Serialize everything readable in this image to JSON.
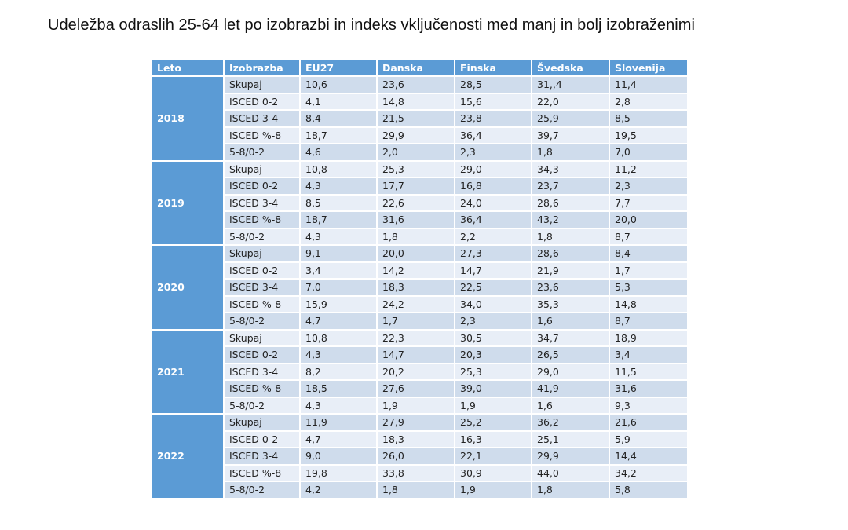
{
  "title": "Udeležba odraslih 25-64 let po izobrazbi in indeks vključenosti med manj in bolj izobraženimi",
  "colors": {
    "header_bg": "#5b9bd5",
    "header_text": "#ffffff",
    "row_dark": "#cfdcec",
    "row_light": "#e8eef7"
  },
  "table": {
    "headers": [
      "Leto",
      "Izobrazba",
      "EU27",
      "Danska",
      "Finska",
      "Švedska",
      "Slovenija"
    ],
    "groups": [
      {
        "year": "2018",
        "rows": [
          [
            "Skupaj",
            "10,6",
            "23,6",
            "28,5",
            "31,,4",
            "11,4"
          ],
          [
            "ISCED 0-2",
            "4,1",
            "14,8",
            "15,6",
            "22,0",
            "2,8"
          ],
          [
            "ISCED 3-4",
            "8,4",
            "21,5",
            "23,8",
            "25,9",
            "8,5"
          ],
          [
            "ISCED %-8",
            "18,7",
            "29,9",
            "36,4",
            "39,7",
            "19,5"
          ],
          [
            "5-8/0-2",
            "4,6",
            "2,0",
            "2,3",
            "1,8",
            "7,0"
          ]
        ]
      },
      {
        "year": "2019",
        "rows": [
          [
            "Skupaj",
            "10,8",
            "25,3",
            "29,0",
            "34,3",
            "11,2"
          ],
          [
            "ISCED 0-2",
            "4,3",
            "17,7",
            "16,8",
            "23,7",
            "2,3"
          ],
          [
            "ISCED 3-4",
            "8,5",
            "22,6",
            "24,0",
            "28,6",
            "7,7"
          ],
          [
            "ISCED %-8",
            "18,7",
            "31,6",
            "36,4",
            "43,2",
            "20,0"
          ],
          [
            "5-8/0-2",
            "4,3",
            "1,8",
            "2,2",
            "1,8",
            "8,7"
          ]
        ]
      },
      {
        "year": "2020",
        "rows": [
          [
            "Skupaj",
            "9,1",
            "20,0",
            "27,3",
            "28,6",
            "8,4"
          ],
          [
            "ISCED 0-2",
            "3,4",
            "14,2",
            "14,7",
            "21,9",
            "1,7"
          ],
          [
            "ISCED 3-4",
            "7,0",
            "18,3",
            "22,5",
            "23,6",
            "5,3"
          ],
          [
            "ISCED %-8",
            "15,9",
            "24,2",
            "34,0",
            "35,3",
            "14,8"
          ],
          [
            "5-8/0-2",
            "4,7",
            "1,7",
            "2,3",
            "1,6",
            "8,7"
          ]
        ]
      },
      {
        "year": "2021",
        "rows": [
          [
            "Skupaj",
            "10,8",
            "22,3",
            "30,5",
            "34,7",
            "18,9"
          ],
          [
            "ISCED 0-2",
            "4,3",
            "14,7",
            "20,3",
            "26,5",
            "3,4"
          ],
          [
            "ISCED 3-4",
            "8,2",
            "20,2",
            "25,3",
            "29,0",
            "11,5"
          ],
          [
            "ISCED %-8",
            "18,5",
            "27,6",
            "39,0",
            "41,9",
            "31,6"
          ],
          [
            "5-8/0-2",
            "4,3",
            "1,9",
            "1,9",
            "1,6",
            "9,3"
          ]
        ]
      },
      {
        "year": "2022",
        "rows": [
          [
            "Skupaj",
            "11,9",
            "27,9",
            "25,2",
            "36,2",
            "21,6"
          ],
          [
            "ISCED 0-2",
            "4,7",
            "18,3",
            "16,3",
            "25,1",
            "5,9"
          ],
          [
            "ISCED 3-4",
            "9,0",
            "26,0",
            "22,1",
            "29,9",
            "14,4"
          ],
          [
            "ISCED %-8",
            "19,8",
            "33,8",
            "30,9",
            "44,0",
            "34,2"
          ],
          [
            "5-8/0-2",
            "4,2",
            "1,8",
            "1,9",
            "1,8",
            "5,8"
          ]
        ]
      }
    ]
  }
}
